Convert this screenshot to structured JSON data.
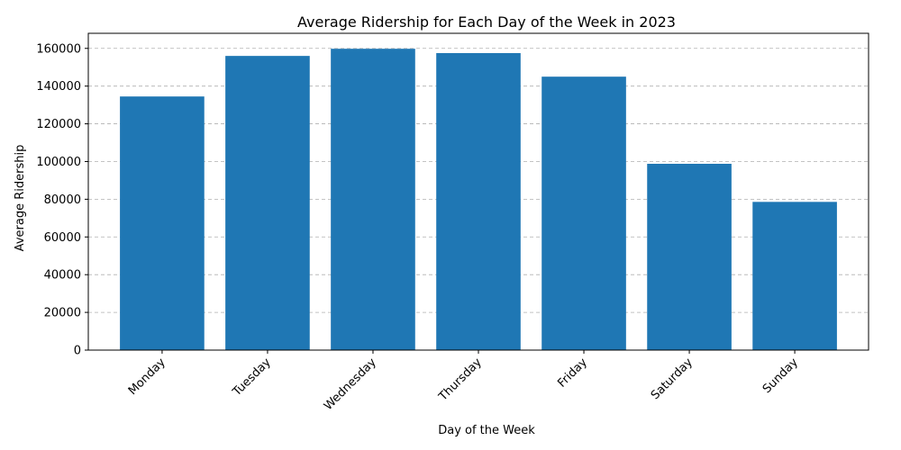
{
  "chart_data": {
    "type": "bar",
    "title": "Average Ridership for Each Day of the Week in 2023",
    "xlabel": "Day of the Week",
    "ylabel": "Average Ridership",
    "categories": [
      "Monday",
      "Tuesday",
      "Wednesday",
      "Thursday",
      "Friday",
      "Saturday",
      "Sunday"
    ],
    "values": [
      134500,
      156000,
      159800,
      157500,
      145000,
      98800,
      78600
    ],
    "ylim": [
      0,
      168000
    ],
    "yticks": [
      0,
      20000,
      40000,
      60000,
      80000,
      100000,
      120000,
      140000,
      160000
    ],
    "grid": "y-dashed",
    "bar_color": "#1f77b4"
  }
}
